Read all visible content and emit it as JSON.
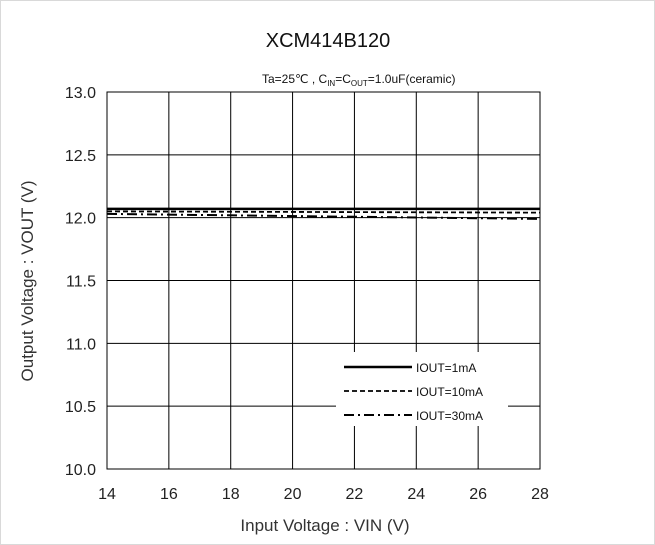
{
  "chart_data": {
    "type": "line",
    "title": "XCM414B120",
    "conditions": {
      "part1": "Ta=25℃ , C",
      "sub_in": "IN",
      "part2": "=C",
      "sub_out": "OUT",
      "part3": "=1.0uF(ceramic)"
    },
    "xlabel": "Input Voltage : VIN (V)",
    "ylabel": "Output Voltage : VOUT (V)",
    "xlim": [
      14,
      28
    ],
    "ylim": [
      10.0,
      13.0
    ],
    "x_ticks": [
      "14",
      "16",
      "18",
      "20",
      "22",
      "24",
      "26",
      "28"
    ],
    "y_ticks": [
      "13.0",
      "12.5",
      "12.0",
      "11.5",
      "11.0",
      "10.5",
      "10.0"
    ],
    "grid": true,
    "legend_position": "bottom-right",
    "x": [
      14,
      28
    ],
    "series": [
      {
        "name": "IOUT=1mA",
        "style": "solid",
        "values": [
          12.07,
          12.07
        ]
      },
      {
        "name": "IOUT=10mA",
        "style": "dashed",
        "values": [
          12.05,
          12.04
        ]
      },
      {
        "name": "IOUT=30mA",
        "style": "dashdot",
        "values": [
          12.03,
          11.99
        ]
      }
    ]
  }
}
